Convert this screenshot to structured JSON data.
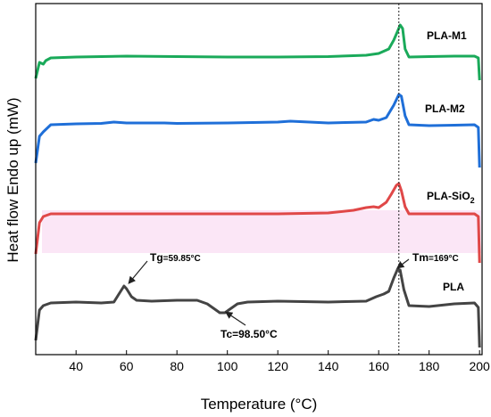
{
  "chart_data": {
    "type": "line",
    "xlabel": "Temperature (°C)",
    "ylabel": "Heat flow Endo up (mW)",
    "xlim": [
      24,
      201
    ],
    "x_ticks": [
      40,
      60,
      80,
      100,
      120,
      140,
      160,
      180,
      200
    ],
    "y_ticks_shown": false,
    "reference_line": {
      "x": 168,
      "style": "dotted"
    },
    "series": [
      {
        "name": "PLA-M1",
        "label": "PLA-M1",
        "color": "#1aaa5a",
        "points": [
          [
            24,
            88
          ],
          [
            25.5,
            70
          ],
          [
            27,
            72
          ],
          [
            28,
            68
          ],
          [
            30,
            65
          ],
          [
            40,
            64
          ],
          [
            60,
            63
          ],
          [
            80,
            63.5
          ],
          [
            100,
            64
          ],
          [
            120,
            64
          ],
          [
            140,
            63.5
          ],
          [
            155,
            62
          ],
          [
            160,
            60
          ],
          [
            164,
            55
          ],
          [
            166,
            45
          ],
          [
            167.5,
            35
          ],
          [
            168.5,
            28
          ],
          [
            169.5,
            32
          ],
          [
            170.5,
            55
          ],
          [
            172,
            64
          ],
          [
            180,
            63.5
          ],
          [
            190,
            63
          ],
          [
            198,
            63
          ],
          [
            199.5,
            65
          ],
          [
            200,
            90
          ]
        ]
      },
      {
        "name": "PLA-M2",
        "label": "PLA-M2",
        "color": "#1f6fd8",
        "points": [
          [
            24,
            183
          ],
          [
            25.5,
            153
          ],
          [
            27,
            148
          ],
          [
            30,
            140
          ],
          [
            40,
            139
          ],
          [
            50,
            138.5
          ],
          [
            55,
            137
          ],
          [
            60,
            138
          ],
          [
            75,
            138
          ],
          [
            80,
            138.5
          ],
          [
            100,
            138
          ],
          [
            120,
            137
          ],
          [
            125,
            136
          ],
          [
            140,
            138
          ],
          [
            155,
            137
          ],
          [
            158,
            134
          ],
          [
            160,
            135
          ],
          [
            163,
            132
          ],
          [
            166,
            118
          ],
          [
            168,
            106
          ],
          [
            169,
            108
          ],
          [
            170.5,
            130
          ],
          [
            172,
            140
          ],
          [
            180,
            141
          ],
          [
            190,
            140.5
          ],
          [
            198,
            140
          ],
          [
            199.5,
            143
          ],
          [
            200,
            188
          ]
        ]
      },
      {
        "name": "PLA-SiO2",
        "label": "PLA-SiO",
        "label_subscript": "2",
        "color": "#e04848",
        "points": [
          [
            24,
            285
          ],
          [
            25.5,
            250
          ],
          [
            27,
            243
          ],
          [
            30,
            240
          ],
          [
            40,
            240
          ],
          [
            60,
            240
          ],
          [
            80,
            240
          ],
          [
            100,
            240
          ],
          [
            120,
            240
          ],
          [
            140,
            239
          ],
          [
            150,
            236
          ],
          [
            155,
            233
          ],
          [
            158,
            232
          ],
          [
            160,
            233
          ],
          [
            163,
            227
          ],
          [
            165,
            218
          ],
          [
            167,
            208
          ],
          [
            168,
            206
          ],
          [
            169,
            214
          ],
          [
            170.5,
            232
          ],
          [
            172,
            240
          ],
          [
            180,
            240
          ],
          [
            190,
            240
          ],
          [
            198,
            240
          ],
          [
            199.5,
            243
          ],
          [
            200,
            295
          ]
        ]
      },
      {
        "name": "PLA",
        "label": "PLA",
        "color": "#444444",
        "points": [
          [
            24,
            382
          ],
          [
            25.5,
            348
          ],
          [
            27,
            343
          ],
          [
            30,
            340
          ],
          [
            40,
            339
          ],
          [
            50,
            340
          ],
          [
            55,
            339
          ],
          [
            57,
            330
          ],
          [
            59,
            321
          ],
          [
            60,
            324
          ],
          [
            62,
            333
          ],
          [
            64,
            337
          ],
          [
            70,
            338
          ],
          [
            80,
            337
          ],
          [
            88,
            337
          ],
          [
            92,
            341
          ],
          [
            95,
            347
          ],
          [
            97,
            351
          ],
          [
            99,
            351
          ],
          [
            101,
            347
          ],
          [
            104,
            341
          ],
          [
            108,
            339
          ],
          [
            120,
            338
          ],
          [
            140,
            339
          ],
          [
            155,
            338
          ],
          [
            159,
            333
          ],
          [
            162,
            330
          ],
          [
            164,
            327
          ],
          [
            166,
            312
          ],
          [
            167.5,
            302
          ],
          [
            168.5,
            303
          ],
          [
            170,
            325
          ],
          [
            172,
            343
          ],
          [
            180,
            344
          ],
          [
            190,
            341
          ],
          [
            198,
            340
          ],
          [
            199.5,
            345
          ],
          [
            200,
            390
          ]
        ]
      }
    ],
    "annotations": [
      {
        "id": "tg",
        "main": "Tg",
        "small": "=59.85°C",
        "x": 59.85
      },
      {
        "id": "tc",
        "main": "Tc=98.50°C",
        "small": "",
        "x": 98.5
      },
      {
        "id": "tm",
        "main": "Tm",
        "small": "=169°C",
        "x": 169
      }
    ]
  }
}
